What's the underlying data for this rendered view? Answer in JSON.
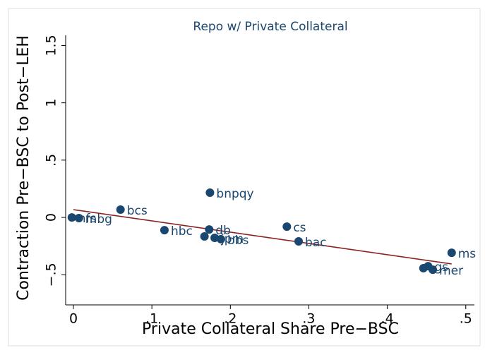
{
  "chart_data": {
    "type": "scatter",
    "title": "Repo w/ Private Collateral",
    "x_label": "Private Collateral Share Pre−BSC",
    "y_label": "Contraction Pre−BSC to Post−LEH",
    "xlim": [
      -0.0099,
      0.511
    ],
    "ylim": [
      -0.763,
      1.589
    ],
    "xticks": [
      0,
      {
        "value": 0.1,
        "label": ".1"
      },
      {
        "value": 0.2,
        "label": ".2"
      },
      {
        "value": 0.3,
        "label": ".3"
      },
      {
        "value": 0.4,
        "label": ".4"
      },
      {
        "value": 0.5,
        "label": ".5"
      }
    ],
    "yticks": [
      {
        "value": -0.5,
        "label": "−.5"
      },
      0,
      {
        "value": 0.5,
        "label": ".5"
      },
      1,
      1.5
    ],
    "series": [
      {
        "color": "#1a476f",
        "x": [
          -0.002,
          0.007,
          0.06,
          0.116,
          0.174,
          0.173,
          0.167,
          0.18,
          0.188,
          0.272,
          0.287,
          0.482,
          0.446,
          0.452,
          0.458
        ],
        "y": [
          0,
          -0.006,
          0.068,
          -0.111,
          0.216,
          -0.105,
          -0.166,
          -0.178,
          -0.19,
          -0.08,
          -0.209,
          -0.308,
          -0.443,
          -0.425,
          -0.456
        ],
        "labels": [
          "nfs",
          "mbg",
          "bcs",
          "hbc",
          "bnpqy",
          "db",
          null,
          "jpm",
          "bbs",
          "cs",
          "bac",
          "ms",
          null,
          "gs",
          "mer"
        ]
      }
    ],
    "fit_line": {
      "color": "#8b2323",
      "x": [
        0,
        0.482
      ],
      "y": [
        0.068,
        -0.406
      ]
    }
  }
}
